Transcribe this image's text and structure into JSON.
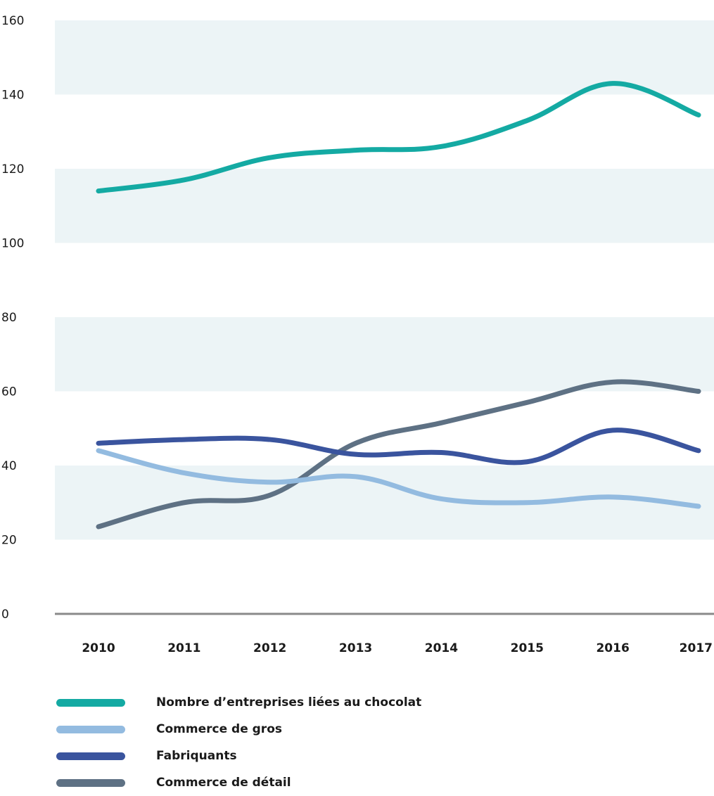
{
  "chart_data": {
    "type": "line",
    "title": "",
    "xlabel": "",
    "ylabel": "",
    "x": [
      2010,
      2011,
      2012,
      2013,
      2014,
      2015,
      2016,
      2017
    ],
    "x_tick_labels": [
      "2010",
      "2011",
      "2012",
      "2013",
      "2014",
      "2015",
      "2016",
      "2017"
    ],
    "ylim": [
      0,
      160
    ],
    "y_ticks": [
      0,
      20,
      40,
      60,
      80,
      100,
      120,
      140,
      160
    ],
    "y_tick_labels": [
      "0",
      "20",
      "40",
      "60",
      "80",
      "100",
      "120",
      "140",
      "160"
    ],
    "grid": "alternating horizontal bands",
    "legend_position": "bottom-left",
    "series": [
      {
        "name": "Nombre d'entreprises liées au chocolat",
        "color": "#14aaa3",
        "values": [
          114,
          117,
          123,
          125,
          126,
          133,
          143,
          134.5
        ]
      },
      {
        "name": "Commerce de gros",
        "color": "#93bbe0",
        "values": [
          44,
          38,
          35.5,
          37,
          31,
          30,
          31.5,
          29
        ]
      },
      {
        "name": "Fabriquants",
        "color": "#3a549e",
        "values": [
          46,
          47,
          47,
          43,
          43.5,
          41,
          49.5,
          44
        ]
      },
      {
        "name": "Commerce de détail",
        "color": "#5e7184",
        "values": [
          23.5,
          30,
          32,
          46,
          51.5,
          57,
          62.5,
          60
        ]
      }
    ],
    "band_color": "#ecf4f6",
    "axis_color": "#8a8a8a"
  },
  "legend": {
    "items": [
      {
        "label": "Nombre d’entreprises liées au chocolat",
        "color": "#14aaa3"
      },
      {
        "label": "Commerce de gros",
        "color": "#93bbe0"
      },
      {
        "label": "Fabriquants",
        "color": "#3a549e"
      },
      {
        "label": "Commerce de détail",
        "color": "#5e7184"
      }
    ]
  }
}
